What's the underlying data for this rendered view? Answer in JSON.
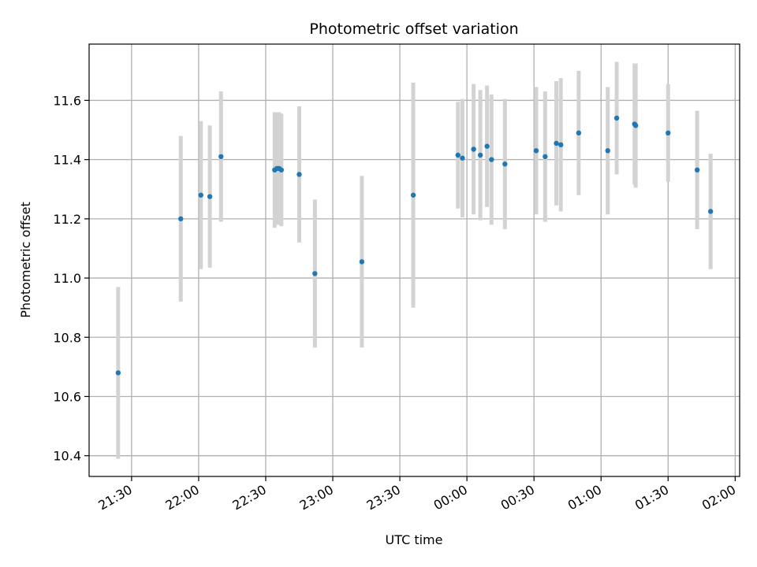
{
  "chart_data": {
    "type": "scatter",
    "title": "Photometric offset variation",
    "xlabel": "UTC time",
    "ylabel": "Photometric offset",
    "x_axis": "time",
    "x_tick_labels": [
      "21:30",
      "22:00",
      "22:30",
      "23:00",
      "23:30",
      "00:00",
      "00:30",
      "01:00",
      "01:30",
      "02:00"
    ],
    "x_tick_minutes": [
      1290,
      1320,
      1350,
      1380,
      1410,
      1440,
      1470,
      1500,
      1530,
      1560
    ],
    "xlim_minutes": [
      1271,
      1562
    ],
    "y_ticks": [
      10.4,
      10.6,
      10.8,
      11.0,
      11.2,
      11.4,
      11.6
    ],
    "y_tick_labels": [
      "10.4",
      "10.6",
      "10.8",
      "11.0",
      "11.2",
      "11.4",
      "11.6"
    ],
    "ylim": [
      10.33,
      11.79
    ],
    "grid": true,
    "colors": {
      "marker": "#1f77b4",
      "errorbar": "#d3d3d3",
      "grid": "#b0b0b0"
    },
    "points": [
      {
        "t": "21:24",
        "x": 1284,
        "y": 10.68,
        "err": 0.29
      },
      {
        "t": "21:52",
        "x": 1312,
        "y": 11.2,
        "err": 0.28
      },
      {
        "t": "22:01",
        "x": 1321,
        "y": 11.28,
        "err": 0.25
      },
      {
        "t": "22:05",
        "x": 1325,
        "y": 11.275,
        "err": 0.24
      },
      {
        "t": "22:10",
        "x": 1330,
        "y": 11.41,
        "err": 0.22
      },
      {
        "t": "22:34",
        "x": 1354,
        "y": 11.365,
        "err": 0.195
      },
      {
        "t": "22:35",
        "x": 1355,
        "y": 11.37,
        "err": 0.19
      },
      {
        "t": "22:36",
        "x": 1356,
        "y": 11.37,
        "err": 0.19
      },
      {
        "t": "22:37",
        "x": 1357,
        "y": 11.365,
        "err": 0.19
      },
      {
        "t": "22:45",
        "x": 1365,
        "y": 11.35,
        "err": 0.23
      },
      {
        "t": "22:52",
        "x": 1372,
        "y": 11.015,
        "err": 0.25
      },
      {
        "t": "23:13",
        "x": 1393,
        "y": 11.055,
        "err": 0.29
      },
      {
        "t": "23:36",
        "x": 1416,
        "y": 11.28,
        "err": 0.38
      },
      {
        "t": "23:56",
        "x": 1436,
        "y": 11.415,
        "err": 0.18
      },
      {
        "t": "23:58",
        "x": 1438,
        "y": 11.405,
        "err": 0.2
      },
      {
        "t": "00:03",
        "x": 1443,
        "y": 11.435,
        "err": 0.22
      },
      {
        "t": "00:06",
        "x": 1446,
        "y": 11.415,
        "err": 0.22
      },
      {
        "t": "00:09",
        "x": 1449,
        "y": 11.445,
        "err": 0.205
      },
      {
        "t": "00:11",
        "x": 1451,
        "y": 11.4,
        "err": 0.22
      },
      {
        "t": "00:17",
        "x": 1457,
        "y": 11.385,
        "err": 0.22
      },
      {
        "t": "00:31",
        "x": 1471,
        "y": 11.43,
        "err": 0.215
      },
      {
        "t": "00:35",
        "x": 1475,
        "y": 11.41,
        "err": 0.22
      },
      {
        "t": "00:40",
        "x": 1480,
        "y": 11.455,
        "err": 0.21
      },
      {
        "t": "00:42",
        "x": 1482,
        "y": 11.45,
        "err": 0.225
      },
      {
        "t": "00:50",
        "x": 1490,
        "y": 11.49,
        "err": 0.21
      },
      {
        "t": "01:03",
        "x": 1503,
        "y": 11.43,
        "err": 0.215
      },
      {
        "t": "01:07",
        "x": 1507,
        "y": 11.54,
        "err": 0.19
      },
      {
        "t": "01:15",
        "x": 1515,
        "y": 11.52,
        "err": 0.205
      },
      {
        "t": "01:15",
        "x": 1515.5,
        "y": 11.515,
        "err": 0.21
      },
      {
        "t": "01:30",
        "x": 1530,
        "y": 11.49,
        "err": 0.165
      },
      {
        "t": "01:43",
        "x": 1543,
        "y": 11.365,
        "err": 0.2
      },
      {
        "t": "01:49",
        "x": 1549,
        "y": 11.225,
        "err": 0.195
      }
    ]
  }
}
